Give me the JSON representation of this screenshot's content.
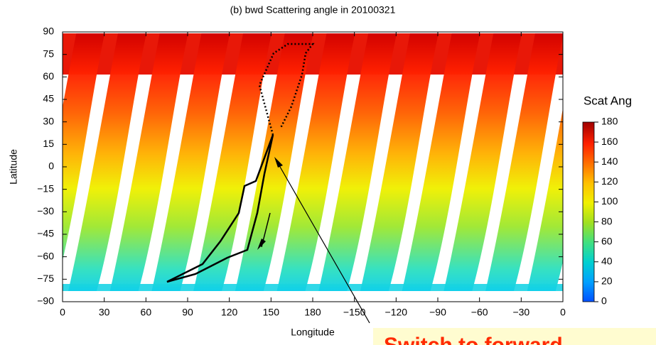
{
  "chart_data": {
    "type": "map",
    "title": "(b) bwd Scattering angle in 20100321",
    "x_label": "Longitude",
    "y_label": "Latitude",
    "xlim": [
      0,
      360
    ],
    "xticks": [
      0,
      30,
      60,
      90,
      120,
      150,
      180,
      {
        "value": 210,
        "label": "−150"
      },
      {
        "value": 240,
        "label": "−120"
      },
      {
        "value": 270,
        "label": "−90"
      },
      {
        "value": 300,
        "label": "−60"
      },
      {
        "value": 330,
        "label": "−30"
      },
      {
        "value": 360,
        "label": "0"
      }
    ],
    "ylim": [
      -90,
      90
    ],
    "yticks": [
      90,
      75,
      60,
      45,
      30,
      15,
      0,
      {
        "value": -15,
        "label": "−15"
      },
      {
        "value": -30,
        "label": "−30"
      },
      {
        "value": -45,
        "label": "−45"
      },
      {
        "value": -60,
        "label": "−60"
      },
      {
        "value": -75,
        "label": "−75"
      },
      {
        "value": -90,
        "label": "−90"
      }
    ],
    "colorbar": {
      "label": "Scat Ang",
      "lim": [
        0,
        180
      ],
      "ticks": [
        180,
        160,
        140,
        120,
        100,
        80,
        60,
        40,
        20,
        0
      ]
    },
    "annotation": "Switch to forward"
  }
}
